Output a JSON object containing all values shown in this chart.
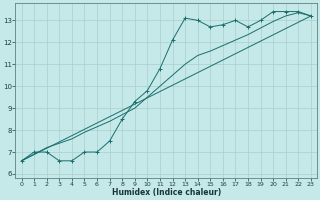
{
  "xlabel": "Humidex (Indice chaleur)",
  "bg_color": "#c5e8e8",
  "grid_color": "#aacece",
  "line_color": "#1a6e6e",
  "xlim": [
    -0.5,
    23.5
  ],
  "ylim": [
    5.8,
    13.8
  ],
  "xticks": [
    0,
    1,
    2,
    3,
    4,
    5,
    6,
    7,
    8,
    9,
    10,
    11,
    12,
    13,
    14,
    15,
    16,
    17,
    18,
    19,
    20,
    21,
    22,
    23
  ],
  "yticks": [
    6,
    7,
    8,
    9,
    10,
    11,
    12,
    13
  ],
  "main_x": [
    0,
    1,
    2,
    3,
    4,
    5,
    6,
    7,
    8,
    9,
    10,
    11,
    12,
    13,
    14,
    15,
    16,
    17,
    18,
    19,
    20,
    21,
    22,
    23
  ],
  "main_y": [
    6.6,
    7.0,
    7.0,
    6.6,
    6.6,
    7.0,
    7.0,
    7.5,
    8.5,
    9.3,
    9.8,
    10.8,
    12.1,
    13.1,
    13.0,
    12.7,
    12.8,
    13.0,
    12.7,
    13.0,
    13.4,
    13.4,
    13.4,
    13.2
  ],
  "line1_x": [
    0,
    23
  ],
  "line1_y": [
    6.6,
    13.2
  ],
  "line2_x": [
    0,
    1,
    2,
    3,
    4,
    5,
    6,
    7,
    8,
    9,
    10,
    11,
    12,
    13,
    14,
    15,
    16,
    17,
    18,
    19,
    20,
    21,
    22,
    23
  ],
  "line2_y": [
    6.6,
    6.9,
    7.2,
    7.4,
    7.6,
    7.9,
    8.15,
    8.4,
    8.7,
    9.0,
    9.5,
    10.0,
    10.5,
    11.0,
    11.4,
    11.6,
    11.85,
    12.1,
    12.35,
    12.65,
    12.95,
    13.2,
    13.35,
    13.2
  ]
}
